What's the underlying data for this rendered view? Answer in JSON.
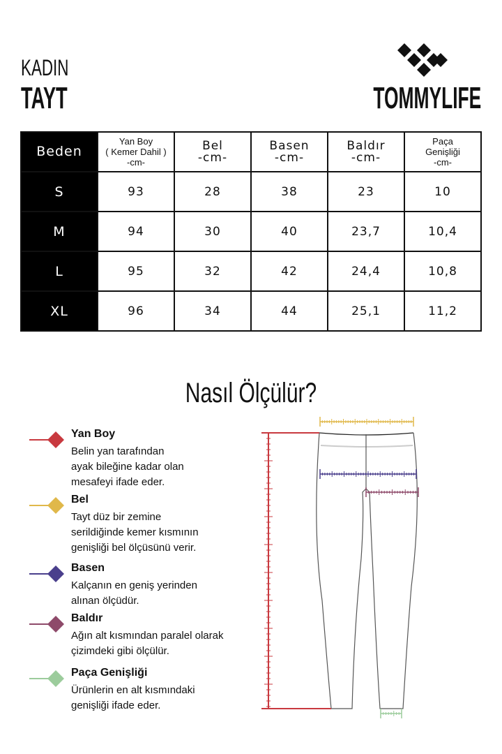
{
  "header": {
    "category": "KADIN",
    "product": "TAYT",
    "brand": "TOMMYLIFE"
  },
  "table": {
    "headers": [
      {
        "lines": [
          "Beden"
        ]
      },
      {
        "lines": [
          "Yan Boy",
          "( Kemer Dahil )",
          "-cm-"
        ]
      },
      {
        "lines": [
          "Bel",
          "-cm-"
        ]
      },
      {
        "lines": [
          "Basen",
          "-cm-"
        ]
      },
      {
        "lines": [
          "Baldır",
          "-cm-"
        ]
      },
      {
        "lines": [
          "Paça",
          "Genişliği",
          "-cm-"
        ]
      }
    ],
    "rows": [
      [
        "S",
        "93",
        "28",
        "38",
        "23",
        "10"
      ],
      [
        "M",
        "94",
        "30",
        "40",
        "23,7",
        "10,4"
      ],
      [
        "L",
        "95",
        "32",
        "42",
        "24,4",
        "10,8"
      ],
      [
        "XL",
        "96",
        "34",
        "44",
        "25,1",
        "11,2"
      ]
    ]
  },
  "guide": {
    "title": "Nasıl Ölçülür?",
    "items": [
      {
        "title": "Yan Boy",
        "desc": [
          "Belin yan tarafından",
          "ayak bileğine kadar olan",
          "mesafeyi ifade eder."
        ],
        "color": "#c8393f"
      },
      {
        "title": "Bel",
        "desc": [
          "Tayt düz bir zemine",
          "serildiğinde kemer kısmının",
          "genişliği bel ölçüsünü verir."
        ],
        "color": "#e0b84a"
      },
      {
        "title": "Basen",
        "desc": [
          "Kalçanın en geniş yerinden",
          "alınan ölçüdür."
        ],
        "color": "#4a3f8c"
      },
      {
        "title": "Baldır",
        "desc": [
          "Ağın alt kısmından paralel olarak",
          "çizimdeki gibi ölçülür."
        ],
        "color": "#8e4a6a"
      },
      {
        "title": "Paça Genişliği",
        "desc": [
          "Ürünlerin en alt kısmındaki",
          "genişliği ifade eder."
        ],
        "color": "#9ccc9c"
      }
    ]
  }
}
